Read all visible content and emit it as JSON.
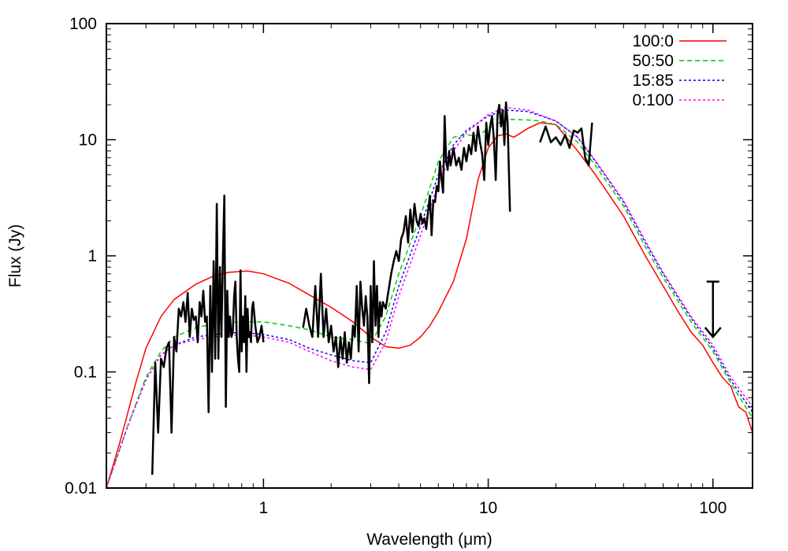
{
  "chart_data": {
    "type": "line",
    "xlabel": "Wavelength (μm)",
    "ylabel": "Flux (Jy)",
    "x_scale": "log",
    "y_scale": "log",
    "xlim": [
      0.2,
      150
    ],
    "ylim": [
      0.01,
      100
    ],
    "x_ticks": [
      {
        "value": 1,
        "label": "1"
      },
      {
        "value": 10,
        "label": "10"
      },
      {
        "value": 100,
        "label": "100"
      }
    ],
    "y_ticks": [
      {
        "value": 0.01,
        "label": "0.01"
      },
      {
        "value": 0.1,
        "label": "0.1"
      },
      {
        "value": 1,
        "label": "1"
      },
      {
        "value": 10,
        "label": "10"
      },
      {
        "value": 100,
        "label": "100"
      }
    ],
    "grid": false,
    "legend_position": "top-right",
    "series": [
      {
        "name": "100:0",
        "color": "#ff0000",
        "dash": "solid",
        "x": [
          0.2,
          0.23,
          0.27,
          0.3,
          0.35,
          0.4,
          0.5,
          0.6,
          0.7,
          0.85,
          1.0,
          1.3,
          1.6,
          2.0,
          2.5,
          3.0,
          3.5,
          4.0,
          4.5,
          5.0,
          5.5,
          6.0,
          7.0,
          8.0,
          9.0,
          10.0,
          11.0,
          12.0,
          13.0,
          15.0,
          17.0,
          20.0,
          25.0,
          30.0,
          40.0,
          50.0,
          60.0,
          70.0,
          80.0,
          90.0,
          100.0,
          110.0,
          120.0,
          130.0,
          140.0,
          150.0
        ],
        "y": [
          0.01,
          0.025,
          0.08,
          0.16,
          0.3,
          0.42,
          0.57,
          0.67,
          0.72,
          0.74,
          0.7,
          0.58,
          0.46,
          0.36,
          0.27,
          0.2,
          0.165,
          0.16,
          0.17,
          0.2,
          0.25,
          0.33,
          0.6,
          1.4,
          4.5,
          8.5,
          10.8,
          11.2,
          10.5,
          12.5,
          14.0,
          13.5,
          8.0,
          5.0,
          2.2,
          1.0,
          0.55,
          0.33,
          0.22,
          0.17,
          0.12,
          0.09,
          0.075,
          0.05,
          0.045,
          0.03
        ]
      },
      {
        "name": "50:50",
        "color": "#00cc00",
        "dash": "dashed",
        "x": [
          0.2,
          0.25,
          0.3,
          0.35,
          0.4,
          0.5,
          0.6,
          0.8,
          1.0,
          1.3,
          1.6,
          2.0,
          2.5,
          3.0,
          3.5,
          4.0,
          5.0,
          6.0,
          7.0,
          8.0,
          9.0,
          10.0,
          12.0,
          15.0,
          17.0,
          20.0,
          25.0,
          30.0,
          40.0,
          50.0,
          60.0,
          80.0,
          100.0,
          120.0,
          150.0
        ],
        "y": [
          0.01,
          0.035,
          0.09,
          0.15,
          0.2,
          0.24,
          0.26,
          0.27,
          0.27,
          0.25,
          0.23,
          0.2,
          0.19,
          0.175,
          0.3,
          0.7,
          2.2,
          6.5,
          10.5,
          11.0,
          10.8,
          12.5,
          15.0,
          14.8,
          14.5,
          13.5,
          9.5,
          6.0,
          2.7,
          1.2,
          0.65,
          0.27,
          0.15,
          0.08,
          0.04
        ]
      },
      {
        "name": "15:85",
        "color": "#0000ee",
        "dash": "dotted",
        "x": [
          0.2,
          0.25,
          0.3,
          0.35,
          0.4,
          0.5,
          0.6,
          0.8,
          1.0,
          1.3,
          1.6,
          2.0,
          2.5,
          3.0,
          3.5,
          4.0,
          5.0,
          6.0,
          7.0,
          8.0,
          10.0,
          12.0,
          15.0,
          20.0,
          25.0,
          30.0,
          40.0,
          50.0,
          60.0,
          80.0,
          100.0,
          120.0,
          150.0
        ],
        "y": [
          0.01,
          0.035,
          0.085,
          0.14,
          0.17,
          0.2,
          0.21,
          0.22,
          0.21,
          0.19,
          0.16,
          0.14,
          0.125,
          0.12,
          0.22,
          0.55,
          1.8,
          5.0,
          9.0,
          12.0,
          16.0,
          18.0,
          17.5,
          14.5,
          10.5,
          6.5,
          2.9,
          1.3,
          0.7,
          0.29,
          0.16,
          0.085,
          0.045
        ]
      },
      {
        "name": "0:100",
        "color": "#ff00ff",
        "dash": "dotted",
        "x": [
          0.2,
          0.25,
          0.3,
          0.35,
          0.4,
          0.5,
          0.6,
          0.8,
          1.0,
          1.3,
          1.6,
          2.0,
          2.5,
          3.0,
          3.5,
          4.0,
          5.0,
          6.0,
          7.0,
          8.0,
          10.0,
          12.0,
          15.0,
          20.0,
          25.0,
          30.0,
          40.0,
          50.0,
          60.0,
          80.0,
          100.0,
          120.0,
          150.0
        ],
        "y": [
          0.01,
          0.035,
          0.085,
          0.14,
          0.17,
          0.19,
          0.2,
          0.21,
          0.2,
          0.18,
          0.15,
          0.125,
          0.11,
          0.105,
          0.18,
          0.45,
          1.5,
          4.2,
          8.0,
          11.5,
          16.5,
          19.0,
          18.0,
          14.5,
          10.5,
          6.6,
          3.0,
          1.35,
          0.72,
          0.3,
          0.17,
          0.09,
          0.05
        ]
      }
    ],
    "observations": {
      "color": "#000000",
      "segments": [
        {
          "x": [
            0.32,
            0.33,
            0.34,
            0.35,
            0.36,
            0.37,
            0.38,
            0.39,
            0.4,
            0.41,
            0.42,
            0.43,
            0.44,
            0.45,
            0.46,
            0.47,
            0.48,
            0.49,
            0.5,
            0.51,
            0.52,
            0.53,
            0.54,
            0.55,
            0.56,
            0.57,
            0.58,
            0.59,
            0.6,
            0.61,
            0.62,
            0.63,
            0.64,
            0.65,
            0.66,
            0.67,
            0.68,
            0.69,
            0.7,
            0.71,
            0.72,
            0.73,
            0.74,
            0.75,
            0.76,
            0.77,
            0.78,
            0.79,
            0.8,
            0.81,
            0.82,
            0.83,
            0.84,
            0.85,
            0.86,
            0.87,
            0.88,
            0.89,
            0.9,
            0.92,
            0.94,
            0.96,
            0.98,
            1.0
          ],
          "y": [
            0.013,
            0.12,
            0.03,
            0.13,
            0.11,
            0.16,
            0.18,
            0.03,
            0.2,
            0.15,
            0.35,
            0.3,
            0.4,
            0.27,
            0.48,
            0.2,
            0.35,
            0.28,
            0.3,
            0.18,
            0.4,
            0.3,
            0.5,
            0.27,
            0.3,
            0.045,
            0.55,
            0.1,
            0.9,
            0.13,
            2.8,
            0.13,
            0.8,
            0.2,
            1.0,
            3.3,
            0.05,
            0.5,
            0.2,
            0.3,
            0.2,
            0.22,
            0.45,
            0.6,
            0.2,
            0.13,
            0.1,
            0.75,
            0.15,
            0.3,
            0.18,
            0.45,
            0.1,
            0.35,
            0.2,
            0.22,
            0.18,
            0.35,
            0.4,
            0.25,
            0.18,
            0.2,
            0.25,
            0.18
          ]
        },
        {
          "x": [
            1.5,
            1.55,
            1.6,
            1.65,
            1.7,
            1.75,
            1.8,
            1.85,
            1.9,
            1.95,
            2.0,
            2.05,
            2.1,
            2.15,
            2.2,
            2.25,
            2.3,
            2.35,
            2.4,
            2.45,
            2.5,
            2.55,
            2.6,
            2.65,
            2.7,
            2.75,
            2.8,
            2.85,
            2.9,
            2.95,
            3.0,
            3.05,
            3.1,
            3.15,
            3.2,
            3.25,
            3.3,
            3.35,
            3.4,
            3.5,
            3.6,
            3.7,
            3.8,
            3.9,
            4.0,
            4.1,
            4.2,
            4.3,
            4.4,
            4.5,
            4.6,
            4.7,
            4.8,
            4.9,
            5.0,
            5.1,
            5.2,
            5.3,
            5.4,
            5.5,
            5.6,
            5.7,
            5.8,
            5.9,
            6.0,
            6.1,
            6.2,
            6.3,
            6.4,
            6.5,
            6.6,
            6.7,
            6.8,
            6.9,
            7.0,
            7.2,
            7.4,
            7.6,
            7.8,
            8.0,
            8.2,
            8.4,
            8.6,
            8.8,
            9.0,
            9.2,
            9.4,
            9.6,
            9.8,
            10.0,
            10.2,
            10.4,
            10.6,
            10.8,
            11.0,
            11.2,
            11.4,
            11.6,
            11.8,
            12.0,
            12.2,
            12.5
          ],
          "y": [
            0.24,
            0.35,
            0.25,
            0.2,
            0.55,
            0.2,
            0.7,
            0.2,
            0.35,
            0.18,
            0.25,
            0.15,
            0.2,
            0.11,
            0.2,
            0.13,
            0.22,
            0.12,
            0.18,
            0.13,
            0.25,
            0.2,
            0.55,
            0.15,
            0.6,
            0.35,
            0.25,
            0.45,
            0.3,
            0.08,
            0.55,
            0.18,
            0.9,
            0.25,
            0.55,
            0.2,
            0.4,
            0.3,
            0.4,
            0.35,
            0.5,
            0.7,
            0.9,
            1.1,
            0.9,
            1.4,
            1.6,
            2.2,
            1.3,
            2.5,
            1.6,
            2.8,
            2.0,
            1.8,
            2.3,
            1.9,
            2.1,
            1.7,
            2.4,
            3.3,
            1.5,
            3.0,
            2.9,
            4.0,
            3.6,
            6.5,
            4.5,
            3.5,
            16.0,
            6.5,
            5.5,
            8.0,
            6.0,
            7.0,
            8.5,
            6.0,
            7.0,
            5.5,
            8.5,
            6.5,
            9.0,
            7.5,
            11.5,
            8.0,
            13.0,
            9.5,
            7.5,
            4.5,
            14.0,
            9.0,
            13.0,
            16.0,
            10.0,
            4.5,
            16.5,
            20.0,
            13.0,
            18.0,
            9.0,
            21.0,
            14.0,
            2.4
          ]
        },
        {
          "x": [
            17.0,
            18.0,
            19.0,
            20.0,
            21.0,
            22.0,
            23.0,
            24.0,
            25.0,
            26.0,
            27.0,
            28.0,
            29.0
          ],
          "y": [
            9.5,
            13.0,
            9.5,
            10.5,
            9.0,
            11.0,
            8.5,
            12.0,
            11.5,
            12.5,
            7.0,
            6.0,
            14.0
          ]
        }
      ],
      "upper_limit": {
        "x": 100,
        "y_top": 0.6,
        "y_bottom": 0.2
      }
    }
  }
}
